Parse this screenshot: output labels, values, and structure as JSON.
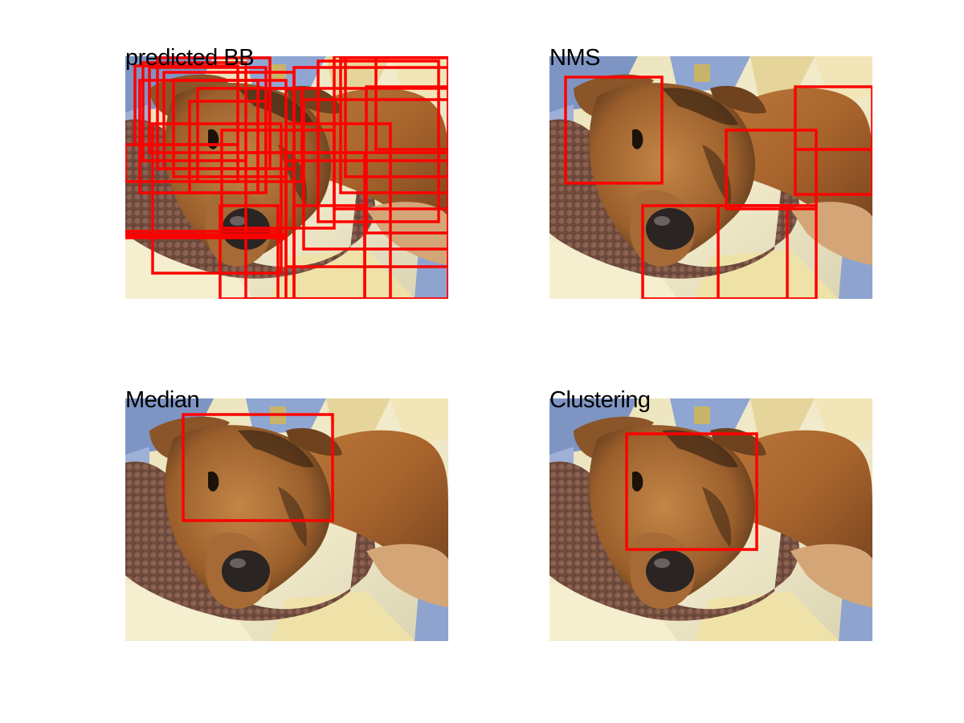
{
  "figure": {
    "box_color": "#ff0000",
    "panels": [
      {
        "title": "predicted BB",
        "boxes": [
          [
            12,
            12,
            140,
            110
          ],
          [
            22,
            8,
            150,
            130
          ],
          [
            30,
            14,
            175,
            120
          ],
          [
            40,
            2,
            180,
            140
          ],
          [
            48,
            20,
            210,
            140
          ],
          [
            60,
            30,
            200,
            150
          ],
          [
            80,
            56,
            175,
            170
          ],
          [
            90,
            40,
            220,
            156
          ],
          [
            0,
            110,
            140,
            156
          ],
          [
            18,
            30,
            165,
            170
          ],
          [
            34,
            84,
            194,
            270
          ],
          [
            118,
            186,
            190,
            302
          ],
          [
            150,
            120,
            298,
            302
          ],
          [
            200,
            84,
            330,
            302
          ],
          [
            210,
            14,
            402,
            302
          ],
          [
            222,
            54,
            402,
            240
          ],
          [
            200,
            130,
            402,
            262
          ],
          [
            260,
            0,
            402,
            190
          ],
          [
            268,
            2,
            402,
            170
          ],
          [
            274,
            0,
            402,
            150
          ],
          [
            300,
            38,
            402,
            220
          ],
          [
            312,
            0,
            402,
            116
          ],
          [
            0,
            222,
            200,
            226
          ],
          [
            0,
            218,
            190,
            224
          ],
          [
            210,
            186,
            298,
            302
          ],
          [
            240,
            6,
            390,
            206
          ],
          [
            180,
            40,
            402,
            120
          ],
          [
            120,
            92,
            260,
            214
          ]
        ]
      },
      {
        "title": "NMS",
        "boxes": [
          [
            20,
            26,
            140,
            158
          ],
          [
            220,
            92,
            332,
            190
          ],
          [
            116,
            186,
            296,
            302
          ],
          [
            306,
            38,
            402,
            116
          ],
          [
            210,
            186,
            332,
            302
          ],
          [
            306,
            116,
            402,
            172
          ]
        ]
      },
      {
        "title": "Median",
        "boxes": [
          [
            72,
            20,
            258,
            152
          ]
        ]
      },
      {
        "title": "Clustering",
        "boxes": [
          [
            96,
            44,
            258,
            188
          ]
        ]
      }
    ]
  }
}
